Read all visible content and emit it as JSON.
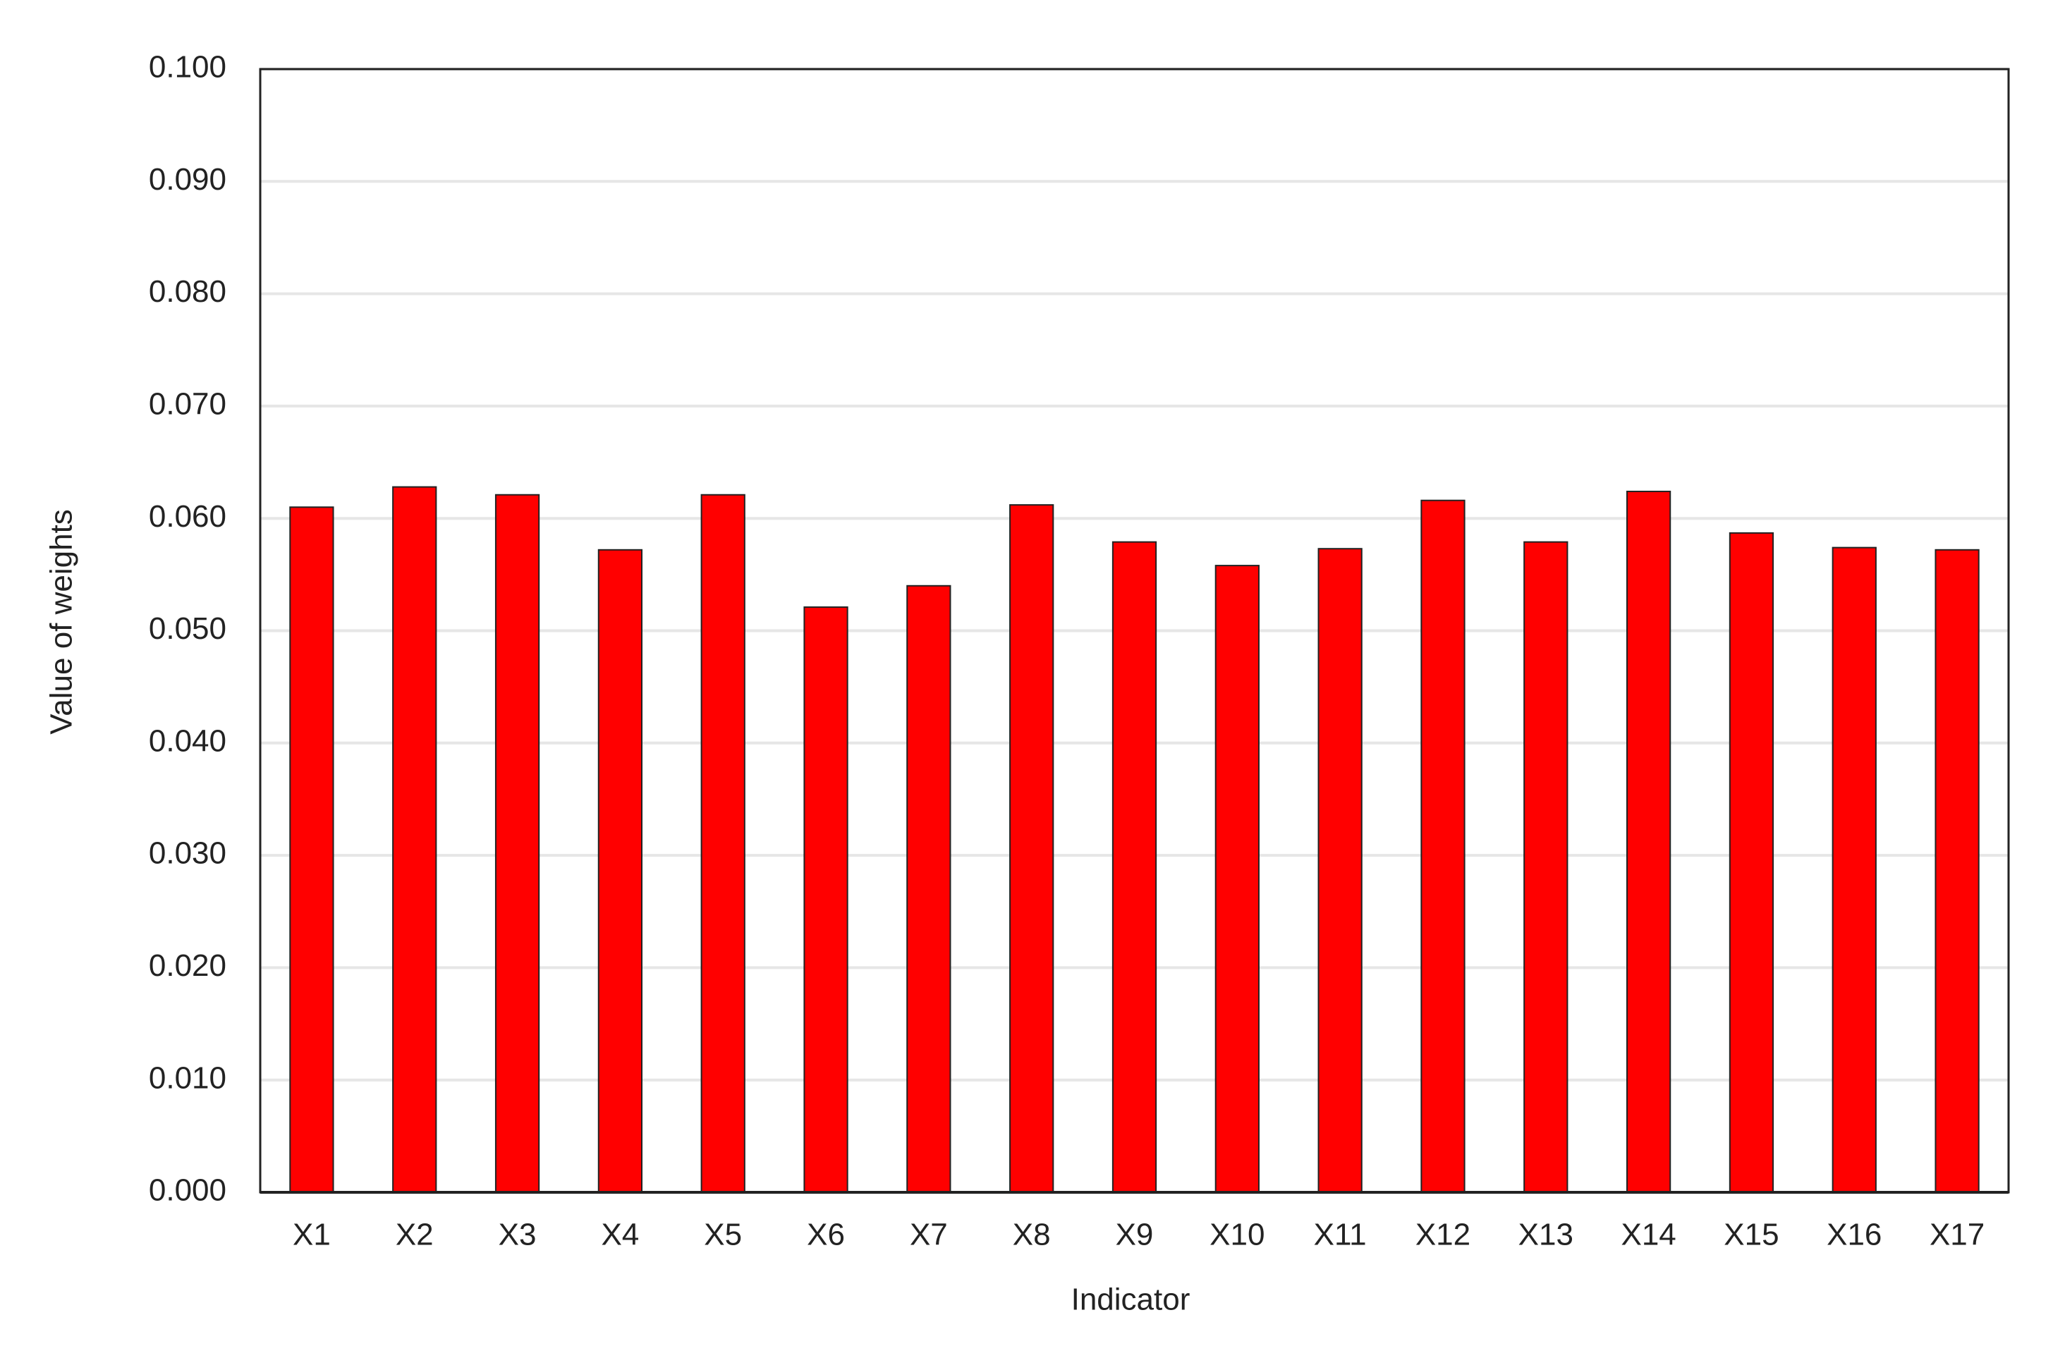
{
  "chart_data": {
    "type": "bar",
    "x_label": "Indicator",
    "y_label": "Value of weights",
    "categories": [
      "X1",
      "X2",
      "X3",
      "X4",
      "X5",
      "X6",
      "X7",
      "X8",
      "X9",
      "X10",
      "X11",
      "X12",
      "X13",
      "X14",
      "X15",
      "X16",
      "X17"
    ],
    "values": [
      0.061,
      0.0628,
      0.0621,
      0.0572,
      0.0621,
      0.0521,
      0.054,
      0.0612,
      0.0579,
      0.0558,
      0.0573,
      0.0616,
      0.0579,
      0.0624,
      0.0587,
      0.0574,
      0.0572
    ],
    "color": "#ff0000",
    "ylim": [
      0,
      0.1
    ],
    "yticks": [
      {
        "value": 0,
        "label": "0.000"
      },
      {
        "value": 0.01,
        "label": "0.010"
      },
      {
        "value": 0.02,
        "label": "0.020"
      },
      {
        "value": 0.03,
        "label": "0.030"
      },
      {
        "value": 0.04,
        "label": "0.040"
      },
      {
        "value": 0.05,
        "label": "0.050"
      },
      {
        "value": 0.06,
        "label": "0.060"
      },
      {
        "value": 0.07,
        "label": "0.070"
      },
      {
        "value": 0.08,
        "label": "0.080"
      },
      {
        "value": 0.09,
        "label": "0.090"
      },
      {
        "value": 0.1,
        "label": "0.100"
      }
    ],
    "grid": true
  }
}
